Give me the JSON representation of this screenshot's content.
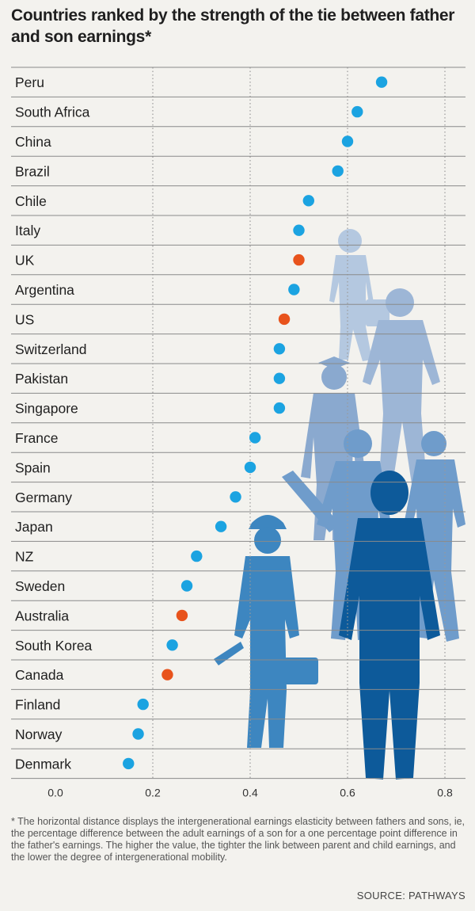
{
  "title": "Countries ranked by the strength of the tie between father and son earnings*",
  "footnote": "* The horizontal distance displays the intergenerational earnings elasticity between fathers and sons, ie, the percentage difference between the adult earnings of a son for a one percentage point difference in the father's earnings. The higher the value, the tighter the link between parent and child earnings, and the lower the degree of intergenerational mobility.",
  "source": "SOURCE: PATHWAYS",
  "colors": {
    "default_point": "#1ba3e1",
    "highlight_point": "#e8531c",
    "row_line": "#8a8a8a",
    "grid": "#9a9a9a"
  },
  "chart_data": {
    "type": "scatter",
    "title": "Countries ranked by the strength of the tie between father and son earnings*",
    "xlabel": "",
    "ylabel": "",
    "xlim": [
      0,
      0.85
    ],
    "xticks": [
      0.0,
      0.2,
      0.4,
      0.6,
      0.8
    ],
    "xtick_labels": [
      "0.0",
      "0.2",
      "0.4",
      "0.6",
      "0.8"
    ],
    "grid": "vertical dotted",
    "categories": [
      "Peru",
      "South Africa",
      "China",
      "Brazil",
      "Chile",
      "Italy",
      "UK",
      "Argentina",
      "US",
      "Switzerland",
      "Pakistan",
      "Singapore",
      "France",
      "Spain",
      "Germany",
      "Japan",
      "NZ",
      "Sweden",
      "Australia",
      "South Korea",
      "Canada",
      "Finland",
      "Norway",
      "Denmark"
    ],
    "values": [
      0.67,
      0.62,
      0.6,
      0.58,
      0.52,
      0.5,
      0.5,
      0.49,
      0.47,
      0.46,
      0.46,
      0.46,
      0.41,
      0.4,
      0.37,
      0.34,
      0.29,
      0.27,
      0.26,
      0.24,
      0.23,
      0.18,
      0.17,
      0.15
    ],
    "highlighted": [
      "UK",
      "US",
      "Australia",
      "Canada"
    ]
  }
}
